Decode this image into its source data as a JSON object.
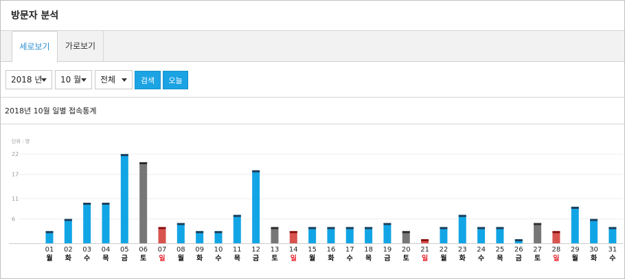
{
  "header": {
    "title": "방문자 분석"
  },
  "tabs": [
    {
      "label": "세로보기",
      "active": true
    },
    {
      "label": "가로보기",
      "active": false
    }
  ],
  "filters": {
    "year": "2018 년",
    "month": "10 월",
    "type": "전체",
    "search_label": "검색",
    "today_label": "오늘"
  },
  "section": {
    "title": "2018년 10월 일별 접속통계"
  },
  "colors": {
    "weekday": "#12a5e6",
    "weekday_cap": "#1d3f5a",
    "saturday": "#777777",
    "saturday_cap": "#2e2e2e",
    "sunday": "#d9534f",
    "sunday_cap": "#8b1111",
    "sunday_label": "#e8202a"
  },
  "chart_data": {
    "type": "bar",
    "unit_label": "단위 : 명",
    "yticks": [
      6,
      11,
      17,
      22
    ],
    "ylim": [
      0,
      23
    ],
    "grid": true,
    "categories": [
      "01",
      "02",
      "03",
      "04",
      "05",
      "06",
      "07",
      "08",
      "09",
      "10",
      "11",
      "12",
      "13",
      "14",
      "15",
      "16",
      "17",
      "18",
      "19",
      "20",
      "21",
      "22",
      "23",
      "24",
      "25",
      "26",
      "27",
      "28",
      "29",
      "30",
      "31"
    ],
    "weekdays": [
      "월",
      "화",
      "수",
      "목",
      "금",
      "토",
      "일",
      "월",
      "화",
      "수",
      "목",
      "금",
      "토",
      "일",
      "월",
      "화",
      "수",
      "목",
      "금",
      "토",
      "일",
      "월",
      "화",
      "수",
      "목",
      "금",
      "토",
      "일",
      "월",
      "화",
      "수"
    ],
    "values": [
      3,
      6,
      10,
      10,
      22,
      20,
      4,
      5,
      3,
      3,
      7,
      18,
      4,
      3,
      4,
      4,
      4,
      4,
      5,
      3,
      1,
      4,
      7,
      4,
      4,
      1,
      5,
      3,
      9,
      6,
      4
    ]
  }
}
